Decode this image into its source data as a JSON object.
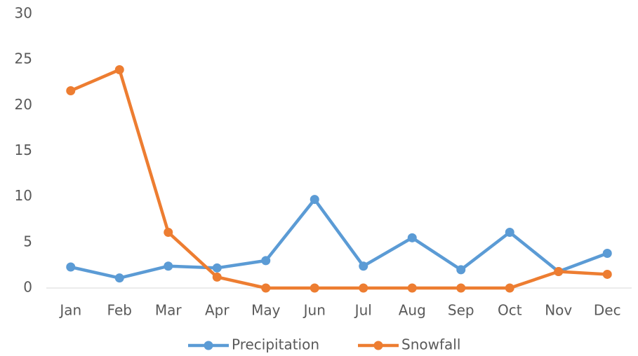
{
  "chart_data": {
    "type": "line",
    "categories": [
      "Jan",
      "Feb",
      "Mar",
      "Apr",
      "May",
      "Jun",
      "Jul",
      "Aug",
      "Sep",
      "Oct",
      "Nov",
      "Dec"
    ],
    "series": [
      {
        "name": "Precipitation",
        "color": "#5b9bd5",
        "values": [
          2.3,
          1.1,
          2.4,
          2.2,
          3.0,
          9.7,
          2.4,
          5.5,
          2.0,
          6.1,
          1.8,
          3.8
        ]
      },
      {
        "name": "Snowfall",
        "color": "#ed7d31",
        "values": [
          21.6,
          23.9,
          6.1,
          1.2,
          0,
          0,
          0,
          0,
          0,
          0,
          1.8,
          1.5
        ]
      }
    ],
    "ylim": [
      0,
      30
    ],
    "yticks": [
      0,
      5,
      10,
      15,
      20,
      25,
      30
    ],
    "grid": false,
    "legend": "bottom"
  }
}
